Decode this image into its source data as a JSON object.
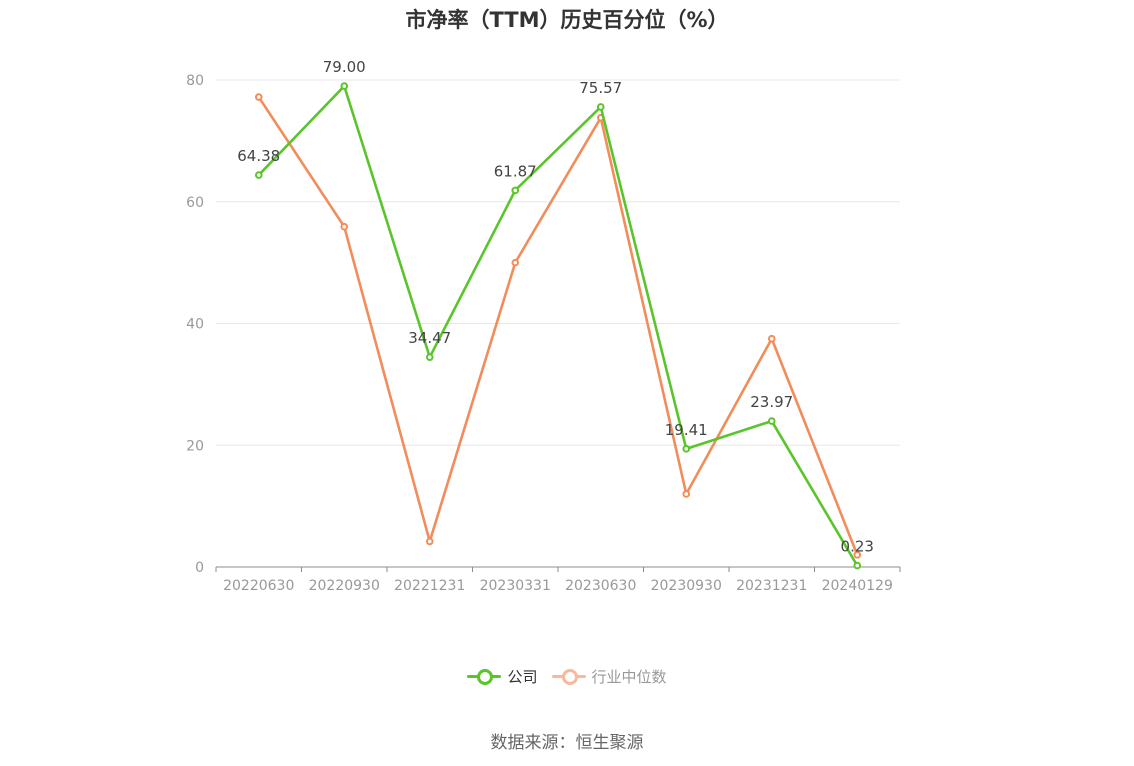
{
  "title": "市净率（TTM）历史百分位（%）",
  "source": "数据来源：恒生聚源",
  "colors": {
    "company": "#5ac52b",
    "industry": "#f28c5a",
    "company_legend": "#5ac52b",
    "industry_legend": "#f9b89b"
  },
  "chart_data": {
    "type": "line",
    "title": "市净率（TTM）历史百分位（%）",
    "xlabel": "",
    "ylabel": "",
    "categories": [
      "20220630",
      "20220930",
      "20221231",
      "20230331",
      "20230630",
      "20230930",
      "20231231",
      "20240129"
    ],
    "ylim": [
      0,
      80
    ],
    "yticks": [
      0,
      20,
      40,
      60,
      80
    ],
    "grid": true,
    "legend_position": "bottom-center",
    "series": [
      {
        "name": "公司",
        "values": [
          64.38,
          79.0,
          34.47,
          61.87,
          75.57,
          19.41,
          23.97,
          0.23
        ],
        "labels": [
          "64.38",
          "79.00",
          "34.47",
          "61.87",
          "75.57",
          "19.41",
          "23.97",
          "0.23"
        ]
      },
      {
        "name": "行业中位数",
        "values": [
          77.2,
          55.9,
          4.2,
          50.0,
          73.8,
          12.0,
          37.5,
          2.0
        ]
      }
    ]
  }
}
